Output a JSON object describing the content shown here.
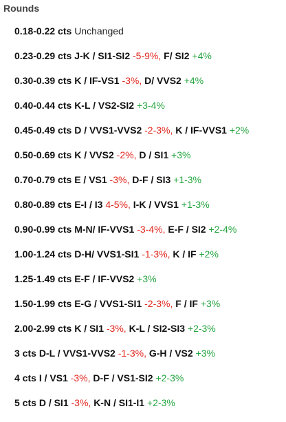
{
  "heading": "Rounds",
  "colors": {
    "decrease": "#e0261d",
    "increase": "#25a540"
  },
  "rows": [
    {
      "size": "0.18-0.22 cts",
      "note": "Unchanged",
      "segments": []
    },
    {
      "size": "0.23-0.29 cts",
      "segments": [
        {
          "grade": "J-K / SI1-SI2",
          "change": "-5-9%",
          "dir": "neg"
        },
        {
          "grade": "F/ SI2",
          "change": "+4%",
          "dir": "pos"
        }
      ]
    },
    {
      "size": "0.30-0.39 cts",
      "segments": [
        {
          "grade": "K / IF-VS1",
          "change": "-3%",
          "dir": "neg"
        },
        {
          "grade": "D/ VVS2",
          "change": "+4%",
          "dir": "pos"
        }
      ]
    },
    {
      "size": "0.40-0.44 cts",
      "segments": [
        {
          "grade": "K-L / VS2-SI2",
          "change": "+3-4%",
          "dir": "pos"
        }
      ]
    },
    {
      "size": "0.45-0.49 cts",
      "segments": [
        {
          "grade": "D / VVS1-VVS2",
          "change": "-2-3%",
          "dir": "neg"
        },
        {
          "grade": "K / IF-VVS1",
          "change": "+2%",
          "dir": "pos"
        }
      ]
    },
    {
      "size": "0.50-0.69 cts",
      "segments": [
        {
          "grade": "K / VVS2",
          "change": "-2%",
          "dir": "neg"
        },
        {
          "grade": "D / SI1",
          "change": "+3%",
          "dir": "pos"
        }
      ]
    },
    {
      "size": "0.70-0.79 cts",
      "segments": [
        {
          "grade": "E / VS1",
          "change": "-3%",
          "dir": "neg"
        },
        {
          "grade": "D-F / SI3",
          "change": "+1-3%",
          "dir": "pos"
        }
      ]
    },
    {
      "size": "0.80-0.89 cts",
      "segments": [
        {
          "grade": "E-I / I3",
          "change": "4-5%",
          "dir": "neg"
        },
        {
          "grade": "I-K / VVS1",
          "change": "+1-3%",
          "dir": "pos"
        }
      ]
    },
    {
      "size": "0.90-0.99 cts",
      "segments": [
        {
          "grade": "M-N/ IF-VVS1",
          "change": "-3-4%",
          "dir": "neg"
        },
        {
          "grade": "E-F / SI2",
          "change": "+2-4%",
          "dir": "pos"
        }
      ]
    },
    {
      "size": "1.00-1.24 cts",
      "segments": [
        {
          "grade": "D-H/ VVS1-SI1",
          "change": "-1-3%",
          "dir": "neg"
        },
        {
          "grade": "K / IF",
          "change": "+2%",
          "dir": "pos"
        }
      ]
    },
    {
      "size": "1.25-1.49 cts",
      "segments": [
        {
          "grade": "E-F / IF-VVS2",
          "change": "+3%",
          "dir": "pos"
        }
      ]
    },
    {
      "size": "1.50-1.99 cts",
      "segments": [
        {
          "grade": "E-G / VVS1-SI1",
          "change": "-2-3%",
          "dir": "neg"
        },
        {
          "grade": "F / IF",
          "change": "+3%",
          "dir": "pos"
        }
      ]
    },
    {
      "size": "2.00-2.99 cts",
      "segments": [
        {
          "grade": "K / SI1",
          "change": "-3%",
          "dir": "neg"
        },
        {
          "grade": "K-L / SI2-SI3",
          "change": "+2-3%",
          "dir": "pos"
        }
      ]
    },
    {
      "size": "3 cts",
      "segments": [
        {
          "grade": "D-L / VVS1-VVS2",
          "change": "-1-3%",
          "dir": "neg"
        },
        {
          "grade": "G-H / VS2",
          "change": "+3%",
          "dir": "pos"
        }
      ]
    },
    {
      "size": "4 cts",
      "segments": [
        {
          "grade": "I / VS1",
          "change": "-3%",
          "dir": "neg"
        },
        {
          "grade": "D-F / VS1-SI2",
          "change": "+2-3%",
          "dir": "pos"
        }
      ]
    },
    {
      "size": "5 cts",
      "segments": [
        {
          "grade": "D / SI1",
          "change": "-3%",
          "dir": "neg"
        },
        {
          "grade": "K-N / SI1-I1",
          "change": "+2-3%",
          "dir": "pos"
        }
      ]
    }
  ]
}
